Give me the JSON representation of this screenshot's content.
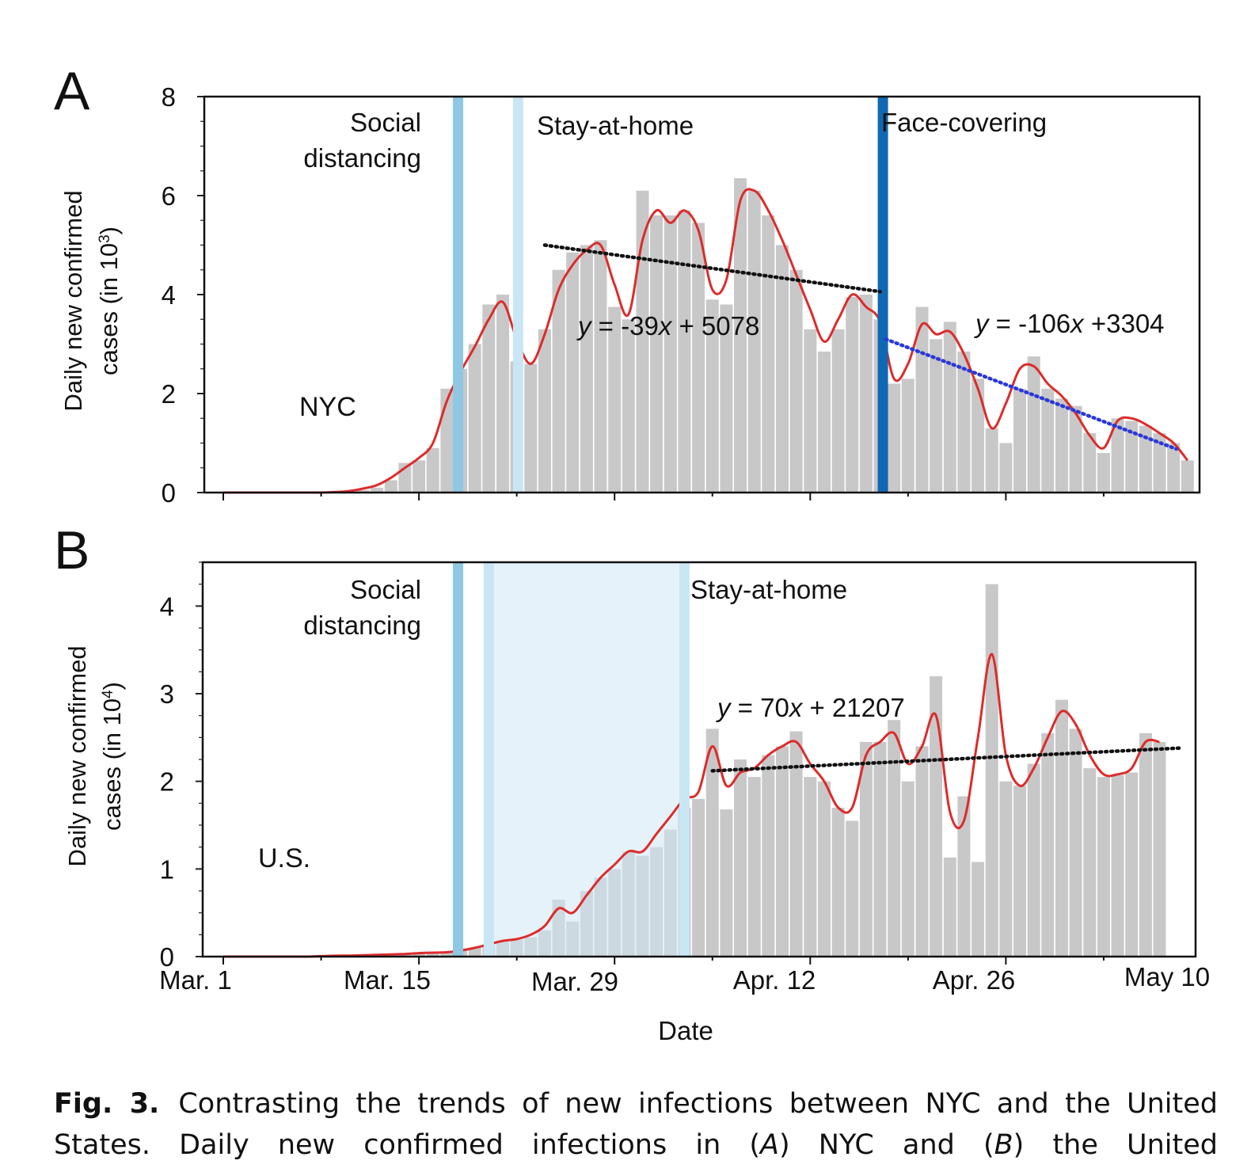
{
  "panel_a": {
    "letter": "A",
    "region_label": "NYC",
    "y_axis_label_line1": "Daily new confirmed",
    "y_axis_label_line2_prefix": "cases (in 10",
    "y_axis_label_exponent": "3",
    "y_axis_label_suffix": ")",
    "events": [
      {
        "label_lines": [
          "Social",
          "distancing"
        ],
        "day": 16.8,
        "color": "#8ec8e4"
      },
      {
        "label_lines": [
          "Stay-at-home"
        ],
        "day": 21.1,
        "color": "#c9e6f4"
      },
      {
        "label_lines": [
          "Face-covering"
        ],
        "day": 47.2,
        "color": "#1068b4"
      }
    ],
    "fit_lines": [
      {
        "label_y": "y",
        "label_rest_1": " = -39",
        "label_x": "x",
        "label_rest_2": " + 5078",
        "x0": 23,
        "x1": 47,
        "y0": 5.0,
        "y1": 4.06,
        "color": "#111111"
      },
      {
        "label_y": "y",
        "label_rest_1": " = -106",
        "label_x": "x",
        "label_rest_2": " +3304",
        "x0": 47.4,
        "x1": 68.2,
        "y0": 3.1,
        "y1": 0.88,
        "color": "#2a38d8"
      }
    ]
  },
  "panel_b": {
    "letter": "B",
    "region_label": "U.S.",
    "y_axis_label_line1": "Daily new confirmed",
    "y_axis_label_line2_prefix": "cases (in 10",
    "y_axis_label_exponent": "4",
    "y_axis_label_suffix": ")",
    "events": [
      {
        "label_lines": [
          "Social",
          "distancing"
        ],
        "day": 16.8,
        "color": "#8ec8e4"
      },
      {
        "label_lines": [
          "Stay-at-home"
        ],
        "day": 33.0,
        "color": "#c9e6f4"
      }
    ],
    "shaded_range": {
      "from_day": 19.0,
      "to_day": 33.0,
      "color": "#cfe8f6"
    },
    "fit_lines": [
      {
        "label_y": "y",
        "label_rest_1": " = 70",
        "label_x": "x",
        "label_rest_2": " + 21207",
        "x0": 35,
        "x1": 68.5,
        "y0": 2.12,
        "y1": 2.38,
        "color": "#111111"
      }
    ],
    "x_tick_labels": [
      "Mar. 1",
      "Mar. 15",
      "Mar. 29",
      "Apr. 12",
      "Apr. 26",
      "May 10"
    ],
    "x_axis_label": "Date"
  },
  "chart_data": [
    {
      "type": "bar",
      "title": "A — NYC",
      "xlabel": "",
      "ylabel": "Daily new confirmed cases (in 10^3)",
      "ylim": [
        0,
        8
      ],
      "yticks": [
        0,
        2,
        4,
        6,
        8
      ],
      "x_start": "Mar. 1",
      "series": [
        {
          "name": "Daily new confirmed cases (bars)",
          "values": [
            0,
            0,
            0,
            0,
            0,
            0,
            0,
            0,
            0,
            0.02,
            0.05,
            0.1,
            0.25,
            0.6,
            0.65,
            0.9,
            2.1,
            2.5,
            3.0,
            3.8,
            4.0,
            2.65,
            2.6,
            3.3,
            4.5,
            4.85,
            5.0,
            5.1,
            3.75,
            3.5,
            6.1,
            5.6,
            5.6,
            5.7,
            5.45,
            3.9,
            3.8,
            6.35,
            6.1,
            5.6,
            5.0,
            4.5,
            3.3,
            2.85,
            3.3,
            3.95,
            4.0,
            3.5,
            2.2,
            2.3,
            3.75,
            3.1,
            3.45,
            2.85,
            2.3,
            1.3,
            1.0,
            2.1,
            2.75,
            2.1,
            1.9,
            1.75,
            1.2,
            0.8,
            1.5,
            1.45,
            1.35,
            1.2,
            1.0,
            0.65
          ]
        },
        {
          "name": "Smoothed trend (red)",
          "values": [
            0,
            0,
            0,
            0,
            0,
            0,
            0,
            0,
            0.01,
            0.03,
            0.08,
            0.15,
            0.3,
            0.5,
            0.7,
            1.0,
            1.85,
            2.45,
            2.95,
            3.5,
            3.85,
            3.1,
            2.6,
            3.2,
            4.1,
            4.6,
            4.9,
            5.0,
            4.2,
            3.6,
            5.1,
            5.7,
            5.45,
            5.7,
            5.3,
            4.1,
            4.3,
            5.9,
            6.1,
            5.7,
            5.1,
            4.4,
            3.7,
            3.05,
            3.5,
            4.0,
            3.75,
            3.45,
            2.3,
            2.6,
            3.4,
            3.2,
            3.25,
            2.8,
            2.1,
            1.3,
            1.8,
            2.5,
            2.55,
            2.2,
            1.95,
            1.6,
            1.15,
            0.9,
            1.45,
            1.5,
            1.38,
            1.2,
            1.0,
            0.65
          ]
        }
      ]
    },
    {
      "type": "bar",
      "title": "B — U.S.",
      "xlabel": "Date",
      "ylabel": "Daily new confirmed cases (in 10^4)",
      "ylim": [
        0,
        4.5
      ],
      "yticks": [
        0,
        1,
        2,
        3,
        4
      ],
      "categories_ticks": [
        "Mar. 1",
        "Mar. 15",
        "Mar. 29",
        "Apr. 12",
        "Apr. 26",
        "May 10"
      ],
      "series": [
        {
          "name": "Daily new confirmed cases (bars)",
          "values": [
            0,
            0,
            0,
            0,
            0,
            0,
            0.01,
            0.01,
            0.01,
            0.01,
            0.02,
            0.02,
            0.02,
            0.03,
            0.04,
            0.05,
            0.05,
            0.07,
            0.1,
            0.13,
            0.17,
            0.19,
            0.22,
            0.3,
            0.65,
            0.4,
            0.75,
            0.9,
            1.0,
            1.2,
            1.15,
            1.25,
            1.45,
            1.7,
            1.8,
            2.6,
            1.68,
            2.25,
            2.05,
            2.3,
            2.4,
            2.57,
            2.05,
            2.0,
            1.7,
            1.55,
            2.45,
            2.45,
            2.7,
            2.0,
            2.4,
            3.2,
            1.13,
            1.83,
            1.08,
            4.25,
            2.0,
            1.95,
            2.2,
            2.55,
            2.93,
            2.6,
            2.15,
            2.05,
            2.07,
            2.1,
            2.55,
            2.45
          ]
        },
        {
          "name": "Smoothed trend (red)",
          "values": [
            0,
            0,
            0,
            0,
            0,
            0,
            0,
            0.005,
            0.01,
            0.012,
            0.015,
            0.02,
            0.025,
            0.03,
            0.04,
            0.045,
            0.05,
            0.07,
            0.1,
            0.14,
            0.18,
            0.2,
            0.25,
            0.35,
            0.55,
            0.5,
            0.7,
            0.9,
            1.05,
            1.2,
            1.2,
            1.4,
            1.6,
            1.8,
            1.88,
            2.4,
            1.95,
            2.1,
            2.15,
            2.3,
            2.4,
            2.45,
            2.2,
            2.0,
            1.7,
            1.7,
            2.3,
            2.45,
            2.55,
            2.2,
            2.4,
            2.75,
            1.65,
            1.55,
            2.5,
            3.45,
            2.3,
            1.95,
            2.15,
            2.5,
            2.8,
            2.65,
            2.3,
            2.08,
            2.08,
            2.15,
            2.45,
            2.45
          ]
        }
      ]
    }
  ],
  "caption": {
    "fig_label": "Fig. 3.",
    "text_part1": "Contrasting the trends of new infections between NYC and the United States. Daily new confirmed infections in (",
    "text_a": "A",
    "text_part2": ") NYC and (",
    "text_b": "B",
    "text_part3": ") the United"
  }
}
